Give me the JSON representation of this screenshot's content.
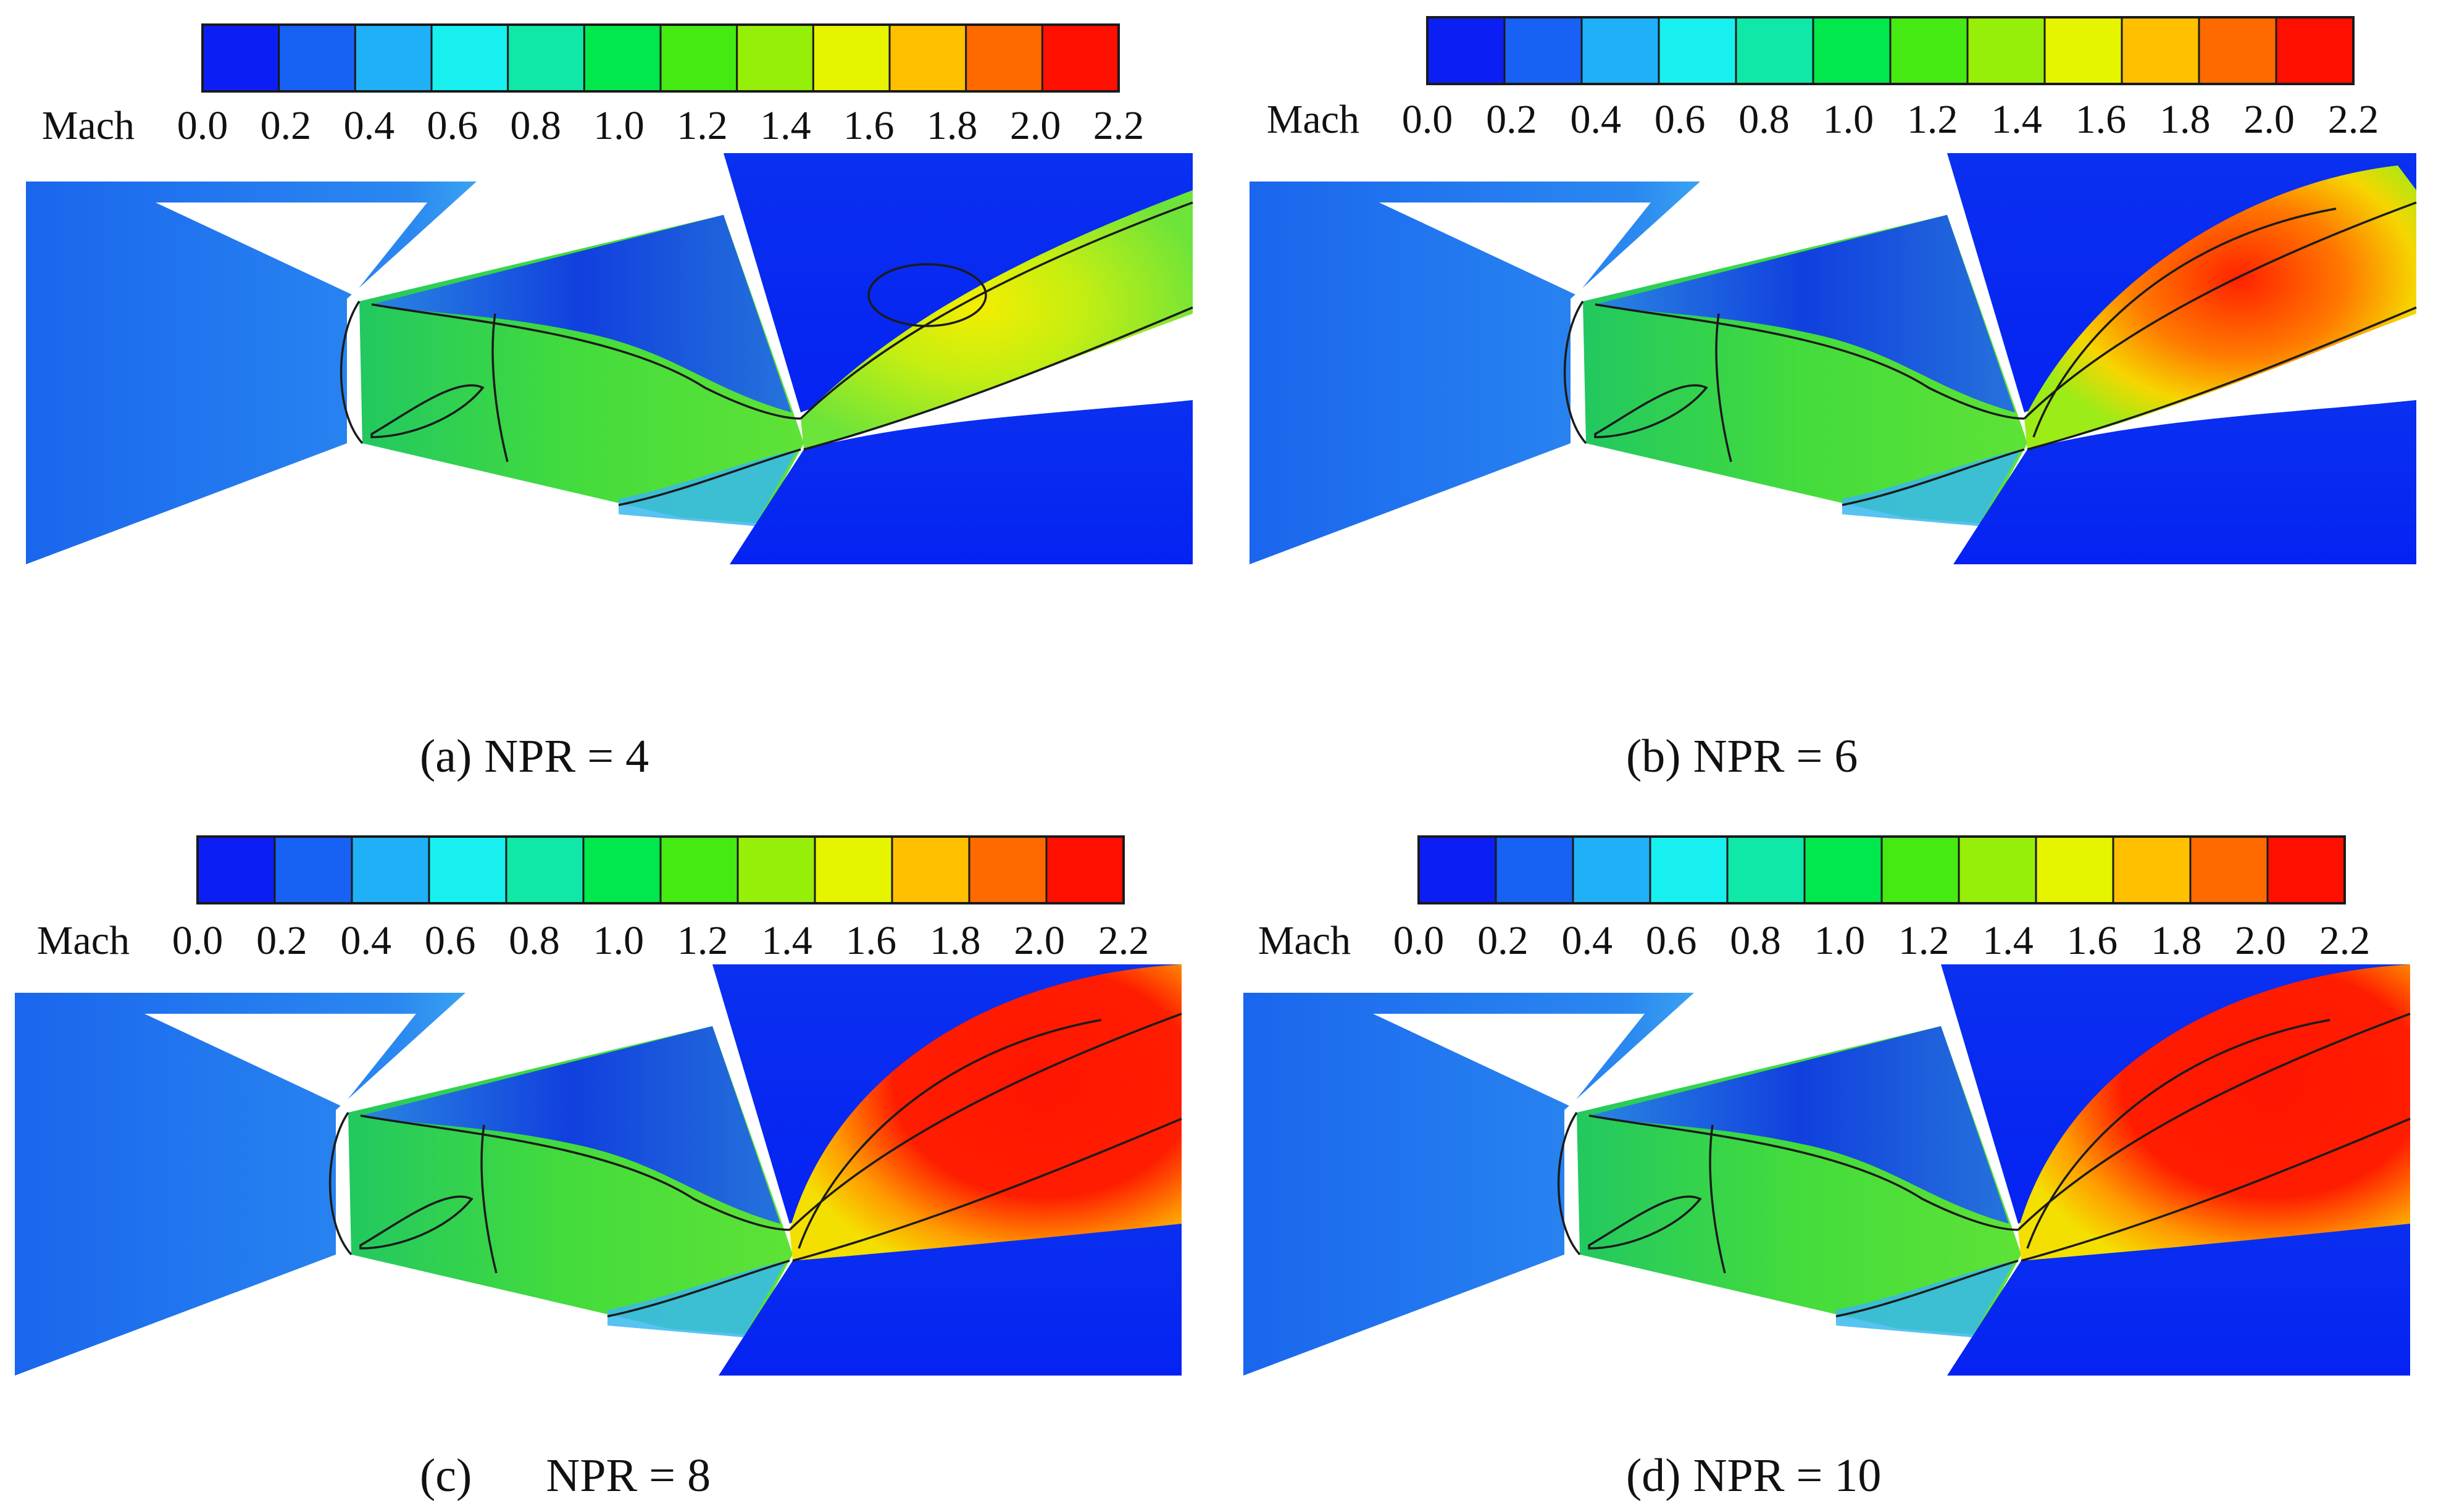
{
  "colorbar": {
    "variable": "Mach",
    "ticks": [
      "0.0",
      "0.2",
      "0.4",
      "0.6",
      "0.8",
      "1.0",
      "1.2",
      "1.4",
      "1.6",
      "1.8",
      "2.0",
      "2.2"
    ],
    "colors": [
      "#0b1ff5",
      "#1761f5",
      "#1fb0f8",
      "#18f0f0",
      "#10e8a8",
      "#00e84c",
      "#45ea12",
      "#96ef08",
      "#e6f400",
      "#ffc000",
      "#ff6a00",
      "#ff0f00"
    ]
  },
  "field_colors": {
    "inlet": "#1d73ee",
    "dead_zone": "#0c2ef0",
    "ambient": "#0626f2",
    "throat_flow": "#3cde3c",
    "plume_low": "#b7ec1a",
    "plume_mid": "#f2e600",
    "plume_high": "#ff1700"
  },
  "panels": [
    {
      "id": "a",
      "caption_label": "(a)",
      "caption_value": "NPR = 4"
    },
    {
      "id": "b",
      "caption_label": "(b)",
      "caption_value": "NPR = 6"
    },
    {
      "id": "c",
      "caption_label": "(c)",
      "caption_value": "NPR = 8"
    },
    {
      "id": "d",
      "caption_label": "(d)",
      "caption_value": "NPR = 10"
    }
  ]
}
